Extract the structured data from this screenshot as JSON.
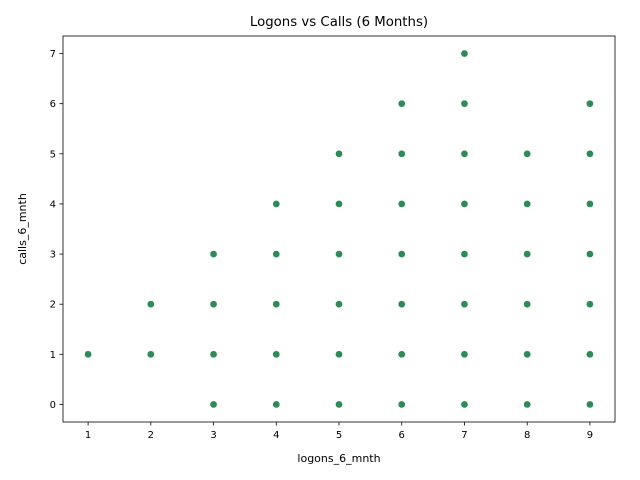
{
  "chart_data": {
    "type": "scatter",
    "title": "Logons vs Calls (6 Months)",
    "xlabel": "logons_6_mnth",
    "ylabel": "calls_6_mnth",
    "xlim": [
      0.6,
      9.4
    ],
    "ylim": [
      -0.35,
      7.35
    ],
    "xticks": [
      1,
      2,
      3,
      4,
      5,
      6,
      7,
      8,
      9
    ],
    "yticks": [
      0,
      1,
      2,
      3,
      4,
      5,
      6,
      7
    ],
    "grid": false,
    "marker_color": "#2e8b57",
    "series": [
      {
        "points": [
          [
            1,
            1
          ],
          [
            2,
            1
          ],
          [
            2,
            2
          ],
          [
            3,
            0
          ],
          [
            3,
            1
          ],
          [
            3,
            2
          ],
          [
            3,
            3
          ],
          [
            4,
            0
          ],
          [
            4,
            1
          ],
          [
            4,
            2
          ],
          [
            4,
            3
          ],
          [
            4,
            4
          ],
          [
            5,
            0
          ],
          [
            5,
            1
          ],
          [
            5,
            2
          ],
          [
            5,
            3
          ],
          [
            5,
            4
          ],
          [
            5,
            5
          ],
          [
            6,
            0
          ],
          [
            6,
            1
          ],
          [
            6,
            2
          ],
          [
            6,
            3
          ],
          [
            6,
            4
          ],
          [
            6,
            5
          ],
          [
            6,
            6
          ],
          [
            7,
            0
          ],
          [
            7,
            1
          ],
          [
            7,
            2
          ],
          [
            7,
            3
          ],
          [
            7,
            4
          ],
          [
            7,
            5
          ],
          [
            7,
            6
          ],
          [
            7,
            7
          ],
          [
            8,
            0
          ],
          [
            8,
            1
          ],
          [
            8,
            2
          ],
          [
            8,
            3
          ],
          [
            8,
            4
          ],
          [
            8,
            5
          ],
          [
            9,
            0
          ],
          [
            9,
            1
          ],
          [
            9,
            2
          ],
          [
            9,
            3
          ],
          [
            9,
            4
          ],
          [
            9,
            5
          ],
          [
            9,
            6
          ]
        ]
      }
    ]
  }
}
